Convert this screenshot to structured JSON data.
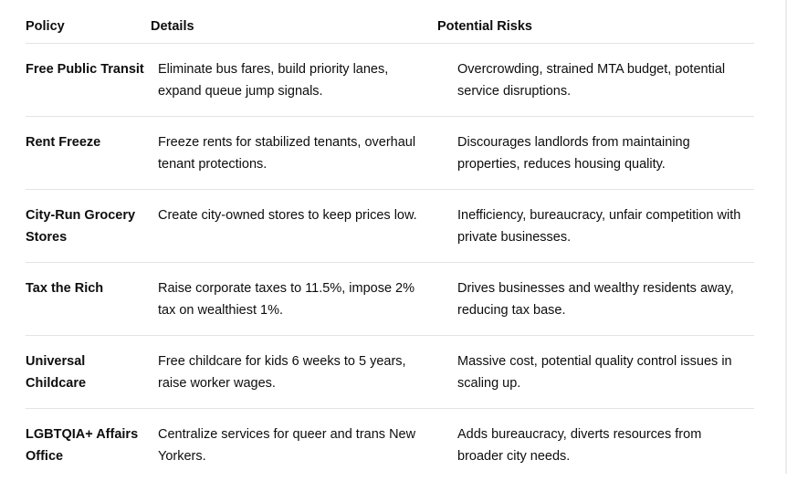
{
  "table": {
    "headers": [
      "Policy",
      "Details",
      "Potential Risks"
    ],
    "rows": [
      {
        "policy": "Free Public Transit",
        "details": "Eliminate bus fares, build priority lanes, expand queue jump signals.",
        "risks": "Overcrowding, strained MTA budget, potential service disruptions."
      },
      {
        "policy": "Rent Freeze",
        "details": "Freeze rents for stabilized tenants, overhaul tenant protections.",
        "risks": "Discourages landlords from maintaining properties, reduces housing quality."
      },
      {
        "policy": "City-Run Grocery Stores",
        "details": "Create city-owned stores to keep prices low.",
        "risks": "Inefficiency, bureaucracy, unfair competition with private businesses."
      },
      {
        "policy": "Tax the Rich",
        "details": "Raise corporate taxes to 11.5%, impose 2% tax on wealthiest 1%.",
        "risks": "Drives businesses and wealthy residents away, reducing tax base."
      },
      {
        "policy": "Universal Childcare",
        "details": "Free childcare for kids 6 weeks to 5 years, raise worker wages.",
        "risks": "Massive cost, potential quality control issues in scaling up."
      },
      {
        "policy": "LGBTQIA+ Affairs Office",
        "details": "Centralize services for queer and trans New Yorkers.",
        "risks": "Adds bureaucracy, diverts resources from broader city needs."
      }
    ]
  }
}
